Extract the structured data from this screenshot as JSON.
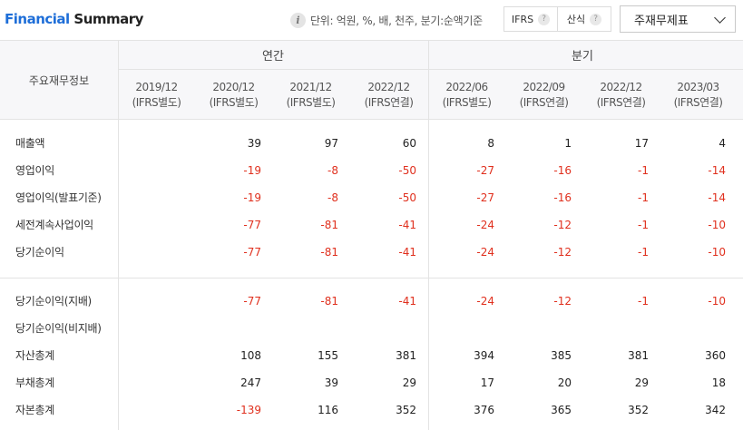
{
  "header": {
    "title_part1": "Financial",
    "title_part2": "Summary",
    "info_icon": "info-icon",
    "unit_text": "단위: 억원, %, 배, 천주, 분기:순액기준",
    "ifrs_label": "IFRS",
    "formula_label": "산식",
    "help_glyph": "?",
    "select_value": "주재무제표"
  },
  "table": {
    "corner_label": "주요재무정보",
    "groups": {
      "annual": "연간",
      "quarter": "분기"
    },
    "columns": [
      {
        "period": "2019/12",
        "basis": "(IFRS별도)"
      },
      {
        "period": "2020/12",
        "basis": "(IFRS별도)"
      },
      {
        "period": "2021/12",
        "basis": "(IFRS별도)"
      },
      {
        "period": "2022/12",
        "basis": "(IFRS연결)"
      },
      {
        "period": "2022/06",
        "basis": "(IFRS별도)"
      },
      {
        "period": "2022/09",
        "basis": "(IFRS연결)"
      },
      {
        "period": "2022/12",
        "basis": "(IFRS연결)"
      },
      {
        "period": "2023/03",
        "basis": "(IFRS연결)"
      }
    ],
    "rows": [
      {
        "label": "매출액",
        "values": [
          "",
          "39",
          "97",
          "60",
          "8",
          "1",
          "17",
          "4"
        ]
      },
      {
        "label": "영업이익",
        "values": [
          "",
          "-19",
          "-8",
          "-50",
          "-27",
          "-16",
          "-1",
          "-14"
        ]
      },
      {
        "label": "영업이익(발표기준)",
        "values": [
          "",
          "-19",
          "-8",
          "-50",
          "-27",
          "-16",
          "-1",
          "-14"
        ]
      },
      {
        "label": "세전계속사업이익",
        "values": [
          "",
          "-77",
          "-81",
          "-41",
          "-24",
          "-12",
          "-1",
          "-10"
        ]
      },
      {
        "label": "당기순이익",
        "values": [
          "",
          "-77",
          "-81",
          "-41",
          "-24",
          "-12",
          "-1",
          "-10"
        ]
      },
      {
        "label": "당기순이익(지배)",
        "values": [
          "",
          "-77",
          "-81",
          "-41",
          "-24",
          "-12",
          "-1",
          "-10"
        ]
      },
      {
        "label": "당기순이익(비지배)",
        "values": [
          "",
          "",
          "",
          "",
          "",
          "",
          "",
          ""
        ]
      },
      {
        "label": "자산총계",
        "values": [
          "",
          "108",
          "155",
          "381",
          "394",
          "385",
          "381",
          "360"
        ]
      },
      {
        "label": "부채총계",
        "values": [
          "",
          "247",
          "39",
          "29",
          "17",
          "20",
          "29",
          "18"
        ]
      },
      {
        "label": "자본총계",
        "values": [
          "",
          "-139",
          "116",
          "352",
          "376",
          "365",
          "352",
          "342"
        ]
      }
    ]
  },
  "colors": {
    "accent": "#1e6ed8",
    "negative": "#e0301e"
  }
}
